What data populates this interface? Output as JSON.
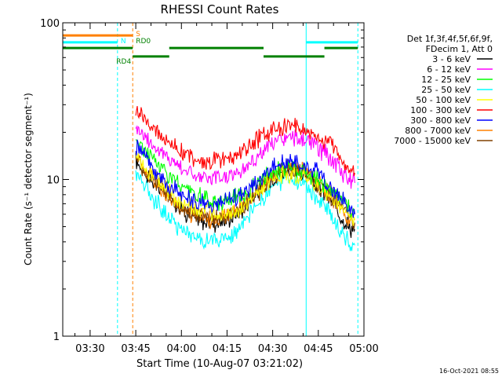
{
  "chart_data": {
    "type": "line",
    "title": "RHESSI Count Rates",
    "xlabel": "Start Time (10-Aug-07 03:21:02)",
    "ylabel": "Count Rate (s⁻¹ detector segment⁻¹)",
    "y_scale": "log",
    "ylim": [
      1,
      100
    ],
    "xlim": [
      "03:21",
      "05:00"
    ],
    "x_ticks": [
      "03:30",
      "03:45",
      "04:00",
      "04:15",
      "04:30",
      "04:45",
      "05:00"
    ],
    "y_ticks": [
      "1",
      "10",
      "100"
    ],
    "legend_header": [
      "Det 1f,3f,4f,5f,6f,9f,",
      "FDecim 1, Att 0"
    ],
    "legend_position": "right",
    "footer_timestamp": "16-Oct-2021 08:55",
    "series": [
      {
        "name": "3 - 6 keV",
        "color": "#000000",
        "x": [
          "03:45",
          "03:47",
          "03:50",
          "03:55",
          "04:00",
          "04:05",
          "04:10",
          "04:15",
          "04:20",
          "04:25",
          "04:30",
          "04:35",
          "04:40",
          "04:45",
          "04:50",
          "04:55",
          "04:57"
        ],
        "y": [
          13,
          12,
          10,
          8,
          6.5,
          5.5,
          5.2,
          5.5,
          6.5,
          8.5,
          10.5,
          11.5,
          11,
          9,
          7,
          5,
          4.8
        ]
      },
      {
        "name": "6 - 12 keV",
        "color": "#ff00ff",
        "x": [
          "03:45",
          "03:47",
          "03:50",
          "03:55",
          "04:00",
          "04:05",
          "04:10",
          "04:15",
          "04:20",
          "04:25",
          "04:30",
          "04:35",
          "04:40",
          "04:45",
          "04:50",
          "04:55",
          "04:57"
        ],
        "y": [
          22,
          20,
          17,
          14,
          12,
          10.5,
          10,
          10.5,
          11.5,
          14,
          17,
          18.5,
          18,
          16,
          13,
          10,
          9.5
        ]
      },
      {
        "name": "12 - 25 keV",
        "color": "#00ff00",
        "x": [
          "03:45",
          "03:50",
          "04:00",
          "04:10",
          "04:20",
          "04:30",
          "04:35",
          "04:40",
          "04:50",
          "04:57"
        ],
        "y": [
          18,
          14,
          9,
          7,
          8,
          11,
          12,
          11.5,
          8.5,
          6
        ]
      },
      {
        "name": "25 - 50 keV",
        "color": "#00ffff",
        "x": [
          "03:45",
          "03:47",
          "03:50",
          "03:55",
          "04:00",
          "04:05",
          "04:10",
          "04:15",
          "04:20",
          "04:25",
          "04:30",
          "04:35",
          "04:40",
          "04:45",
          "04:50",
          "04:55",
          "04:57"
        ],
        "y": [
          11,
          10,
          8,
          6,
          4.8,
          4.2,
          4,
          4.2,
          5,
          7,
          9,
          10,
          9.5,
          7.5,
          5.5,
          4,
          3.8
        ]
      },
      {
        "name": "50 - 100 keV",
        "color": "#ffff00",
        "x": [
          "03:45",
          "03:50",
          "04:00",
          "04:10",
          "04:20",
          "04:30",
          "04:35",
          "04:40",
          "04:50",
          "04:57"
        ],
        "y": [
          14,
          11,
          7,
          6,
          6.5,
          10,
          11,
          10.5,
          7.5,
          5.5
        ]
      },
      {
        "name": "100 - 300 keV",
        "color": "#ff0000",
        "x": [
          "03:45",
          "03:47",
          "03:50",
          "03:55",
          "04:00",
          "04:05",
          "04:10",
          "04:15",
          "04:20",
          "04:25",
          "04:30",
          "04:35",
          "04:40",
          "04:45",
          "04:50",
          "04:55",
          "04:57"
        ],
        "y": [
          28,
          26,
          22,
          18,
          15,
          13.5,
          13,
          13.5,
          15,
          18,
          21,
          22,
          21,
          19,
          16,
          12,
          11
        ]
      },
      {
        "name": "300 - 800 keV",
        "color": "#0000ff",
        "x": [
          "03:45",
          "03:47",
          "03:50",
          "03:55",
          "04:00",
          "04:05",
          "04:10",
          "04:15",
          "04:20",
          "04:25",
          "04:30",
          "04:35",
          "04:40",
          "04:45",
          "04:50",
          "04:55",
          "04:57"
        ],
        "y": [
          16,
          15,
          12,
          9.5,
          8,
          7.2,
          7,
          7.2,
          8,
          10,
          12,
          13,
          12.5,
          11,
          8.5,
          6.5,
          6
        ]
      },
      {
        "name": "800 - 7000 keV",
        "color": "#ff8000",
        "x": [
          "03:45",
          "03:47",
          "03:50",
          "03:55",
          "04:00",
          "04:05",
          "04:10",
          "04:15",
          "04:20",
          "04:25",
          "04:30",
          "04:35",
          "04:40",
          "04:45",
          "04:50",
          "04:55",
          "04:57"
        ],
        "y": [
          14,
          13,
          10.5,
          8,
          6.5,
          5.8,
          5.5,
          5.8,
          6.8,
          8.8,
          10.8,
          11.8,
          11.3,
          9.5,
          7.5,
          5.5,
          5.2
        ]
      },
      {
        "name": "7000 - 15000 keV",
        "color": "#804000",
        "x": [
          "03:45",
          "03:50",
          "04:00",
          "04:10",
          "04:20",
          "04:30",
          "04:35",
          "04:40",
          "04:50",
          "04:57"
        ],
        "y": [
          13.5,
          10.5,
          6.5,
          5.5,
          6.5,
          10.5,
          11.5,
          11,
          7.5,
          5.3
        ]
      }
    ],
    "annotations": {
      "vertical_lines": [
        {
          "x": "03:21",
          "color": "#00ffff",
          "style": "solid"
        },
        {
          "x": "03:39",
          "color": "#00ffff",
          "style": "dashed"
        },
        {
          "x": "03:44",
          "color": "#ff8000",
          "style": "dashed"
        },
        {
          "x": "04:41",
          "color": "#00ffff",
          "style": "solid"
        },
        {
          "x": "04:58",
          "color": "#00ffff",
          "style": "dashed"
        }
      ],
      "flag_bars": [
        {
          "label": "S",
          "color": "#ff8000",
          "y": 83,
          "segments": [
            [
              "03:21",
              "03:44"
            ]
          ]
        },
        {
          "label": "N",
          "color": "#00ffff",
          "y": 75,
          "segments": [
            [
              "03:21",
              "03:39"
            ],
            [
              "04:41",
              "04:58"
            ]
          ]
        },
        {
          "label": "RD0",
          "color": "#008000",
          "y": 69,
          "segments": [
            [
              "03:21",
              "03:44"
            ],
            [
              "03:56",
              "04:27"
            ],
            [
              "04:47",
              "04:58"
            ]
          ]
        },
        {
          "label": "RD4",
          "color": "#008000",
          "y": 61,
          "segments": [
            [
              "03:44",
              "03:56"
            ],
            [
              "04:27",
              "04:47"
            ]
          ]
        }
      ]
    }
  }
}
